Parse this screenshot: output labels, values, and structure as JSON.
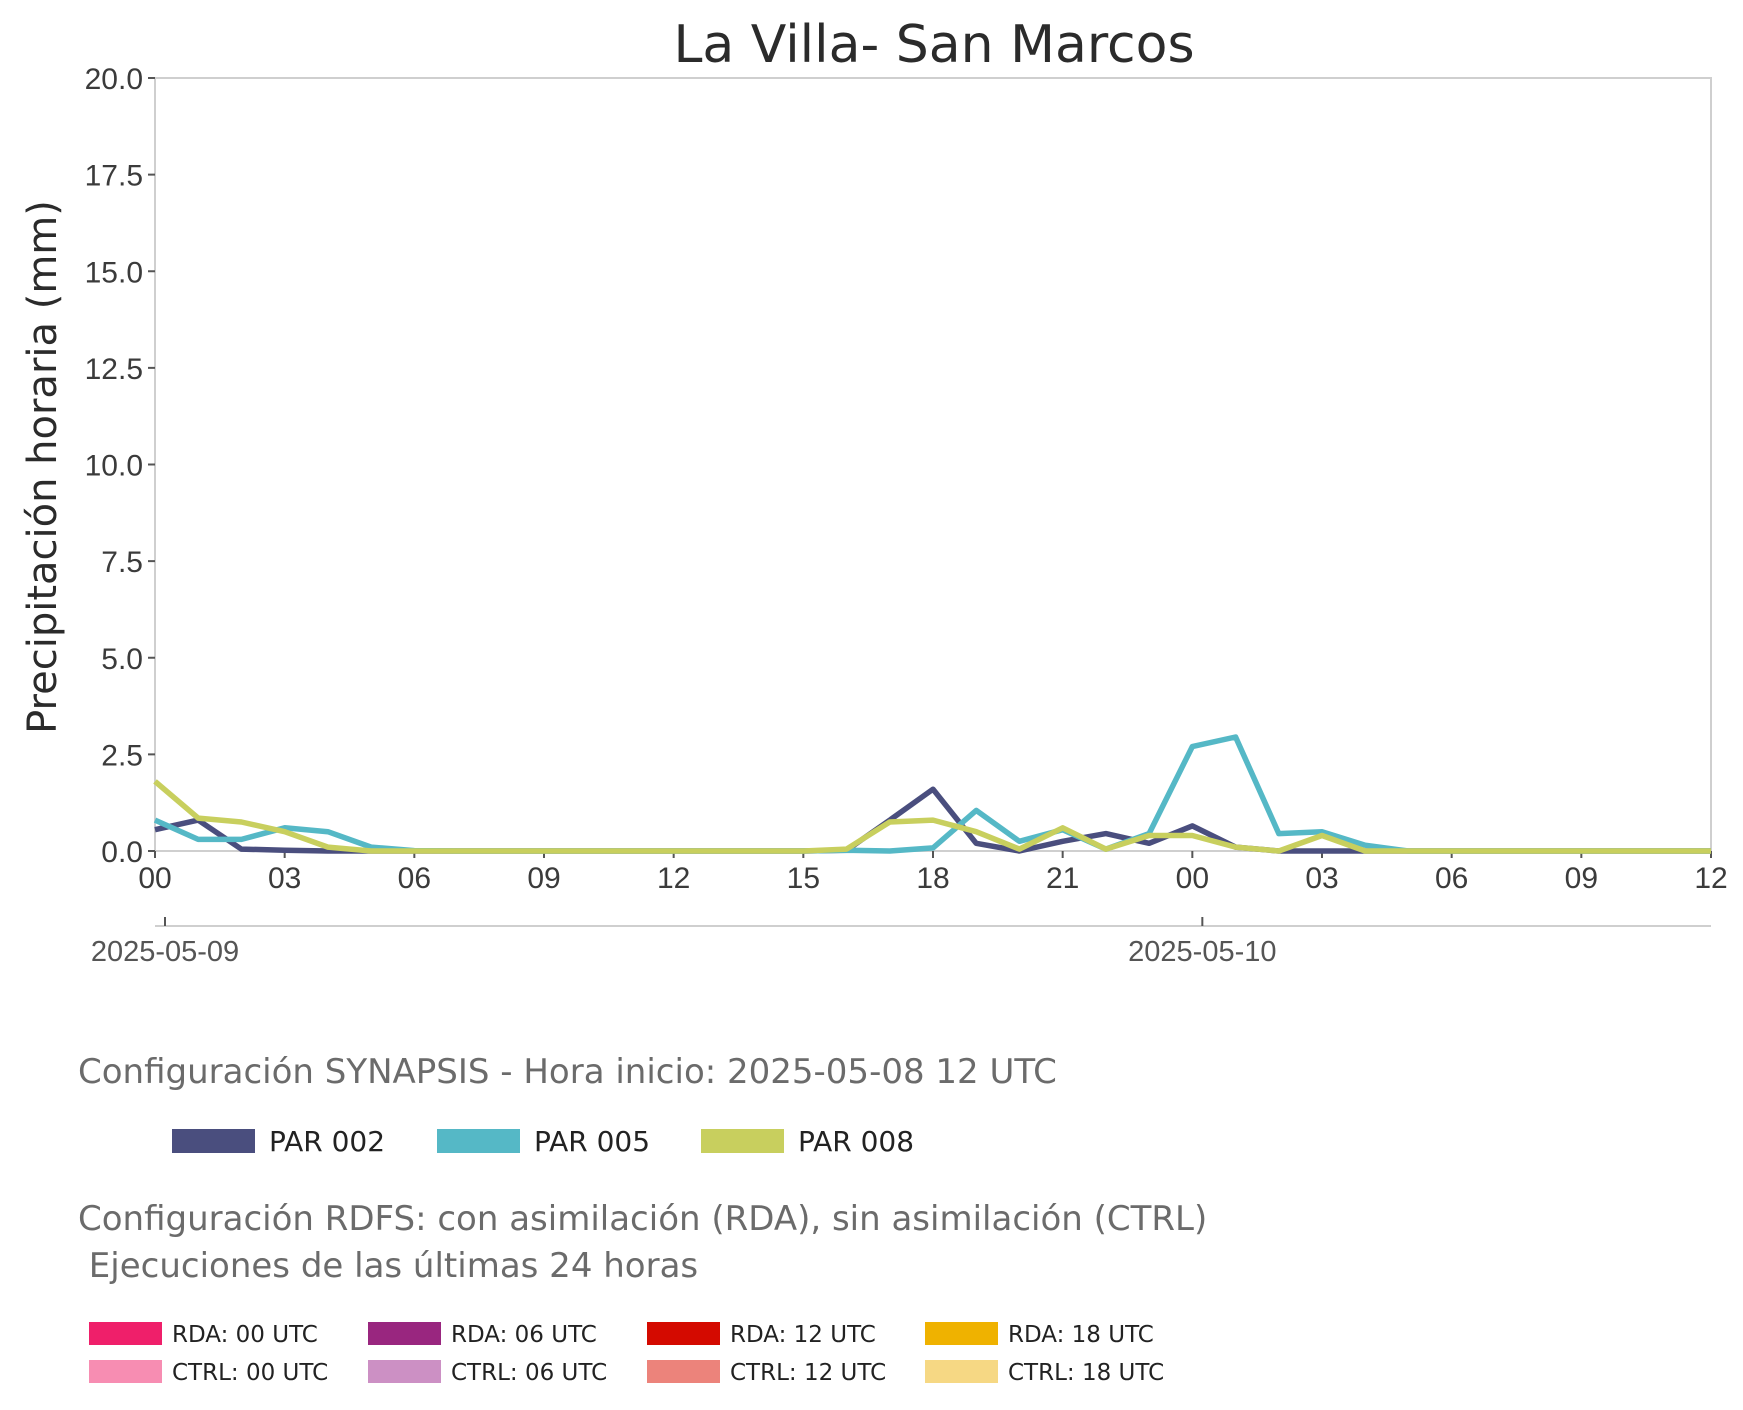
{
  "chart_data": {
    "type": "line",
    "title": "La Villa- San Marcos",
    "xlabel": "",
    "ylabel": "Precipitación horaria (mm)",
    "ylim": [
      0,
      20
    ],
    "y_ticks": [
      "0.0",
      "2.5",
      "5.0",
      "7.5",
      "10.0",
      "12.5",
      "15.0",
      "17.5",
      "20.0"
    ],
    "x_range_hours": [
      0,
      36
    ],
    "x_tick_labels": [
      "00",
      "03",
      "06",
      "09",
      "12",
      "15",
      "18",
      "21",
      "00",
      "03",
      "06",
      "09",
      "12"
    ],
    "date_labels": [
      {
        "label": "2025-05-09",
        "hour": 0
      },
      {
        "label": "2025-05-10",
        "hour": 24
      }
    ],
    "grid": false,
    "x": [
      0,
      1,
      2,
      3,
      4,
      5,
      6,
      7,
      8,
      9,
      10,
      11,
      12,
      13,
      14,
      15,
      16,
      17,
      18,
      19,
      20,
      21,
      22,
      23,
      24,
      25,
      26,
      27,
      28,
      29,
      30,
      31,
      32,
      33,
      34,
      35,
      36
    ],
    "series": [
      {
        "name": "PAR 002",
        "color": "#4a4e7e",
        "values": [
          0.55,
          0.8,
          0.05,
          0.02,
          0,
          0,
          0,
          0,
          0,
          0,
          0,
          0,
          0,
          0,
          0,
          0,
          0.02,
          0.8,
          1.6,
          0.2,
          0,
          0.25,
          0.45,
          0.2,
          0.65,
          0.1,
          0,
          0,
          0,
          0,
          0,
          0,
          0,
          0,
          0,
          0,
          0
        ]
      },
      {
        "name": "PAR 005",
        "color": "#55b8c6",
        "values": [
          0.8,
          0.3,
          0.3,
          0.6,
          0.5,
          0.1,
          0.01,
          0,
          0,
          0,
          0,
          0,
          0,
          0,
          0,
          0,
          0.02,
          0,
          0.08,
          1.05,
          0.25,
          0.55,
          0.05,
          0.45,
          2.7,
          2.95,
          0.45,
          0.5,
          0.15,
          0,
          0,
          0,
          0,
          0,
          0,
          0,
          0
        ]
      },
      {
        "name": "PAR 008",
        "color": "#c8cf5e",
        "values": [
          1.8,
          0.85,
          0.75,
          0.5,
          0.1,
          0,
          0,
          0,
          0,
          0,
          0,
          0,
          0,
          0,
          0,
          0,
          0.05,
          0.75,
          0.8,
          0.5,
          0.05,
          0.6,
          0.05,
          0.4,
          0.4,
          0.1,
          0,
          0.4,
          0,
          0,
          0,
          0,
          0,
          0,
          0,
          0,
          0
        ]
      }
    ]
  },
  "legend_synapsis": {
    "title": "Configuración SYNAPSIS - Hora inicio: 2025-05-08 12 UTC",
    "items": [
      {
        "label": "PAR 002",
        "color": "#4a4e7e"
      },
      {
        "label": "PAR 005",
        "color": "#55b8c6"
      },
      {
        "label": "PAR 008",
        "color": "#c8cf5e"
      }
    ]
  },
  "legend_rdfs": {
    "title_line1": "Configuración RDFS: con asimilación (RDA), sin asimilación (CTRL)",
    "title_line2": " Ejecuciones de las últimas 24 horas",
    "items": [
      {
        "label": "RDA: 00 UTC",
        "color": "#ef1f6a"
      },
      {
        "label": "RDA: 06 UTC",
        "color": "#99267f"
      },
      {
        "label": "RDA: 12 UTC",
        "color": "#d40a00"
      },
      {
        "label": "RDA: 18 UTC",
        "color": "#efb200"
      },
      {
        "label": "CTRL: 00 UTC",
        "color": "#f78db2"
      },
      {
        "label": "CTRL: 06 UTC",
        "color": "#cc90c4"
      },
      {
        "label": "CTRL: 12 UTC",
        "color": "#ec837b"
      },
      {
        "label": "CTRL: 18 UTC",
        "color": "#f6d884"
      }
    ]
  }
}
